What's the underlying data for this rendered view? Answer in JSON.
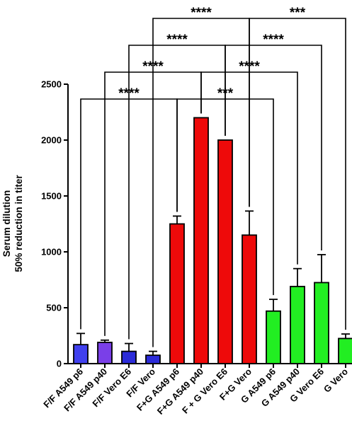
{
  "chart_data": {
    "type": "bar",
    "categories": [
      "F/F A549 p6",
      "F/F A549 p40",
      "F/F Vero E6",
      "F/F Vero",
      "F+G A549 p6",
      "F+G A549 p40",
      "F + G Vero E6",
      "F+G Vero",
      "G A549 p6",
      "G A549 p40",
      "G Vero E6",
      "G Vero"
    ],
    "values": [
      170,
      190,
      110,
      75,
      1250,
      2200,
      2000,
      1150,
      470,
      690,
      725,
      225
    ],
    "errors": [
      100,
      20,
      70,
      35,
      70,
      0,
      0,
      215,
      105,
      160,
      250,
      40
    ],
    "colors": [
      "#4040ee",
      "#7a3fe8",
      "#2b2bd8",
      "#2b2bd8",
      "#ee0a0a",
      "#ee0a0a",
      "#ee0a0a",
      "#ee0a0a",
      "#22ee22",
      "#22ee22",
      "#22ee22",
      "#22ee22"
    ],
    "ylabel_lines": [
      "Serum dilution",
      "50% reduction in titer"
    ],
    "ylim": [
      0,
      2500
    ],
    "yticks": [
      "0",
      "500",
      "1000",
      "1500",
      "2000",
      "2500"
    ],
    "grid": false,
    "significance": [
      {
        "from": 0,
        "to": 4,
        "label": "****"
      },
      {
        "from": 4,
        "to": 8,
        "label": "***"
      },
      {
        "from": 1,
        "to": 5,
        "label": "****"
      },
      {
        "from": 5,
        "to": 9,
        "label": "****"
      },
      {
        "from": 2,
        "to": 6,
        "label": "****"
      },
      {
        "from": 6,
        "to": 10,
        "label": "****"
      },
      {
        "from": 3,
        "to": 7,
        "label": "****"
      },
      {
        "from": 7,
        "to": 11,
        "label": "***"
      }
    ]
  }
}
